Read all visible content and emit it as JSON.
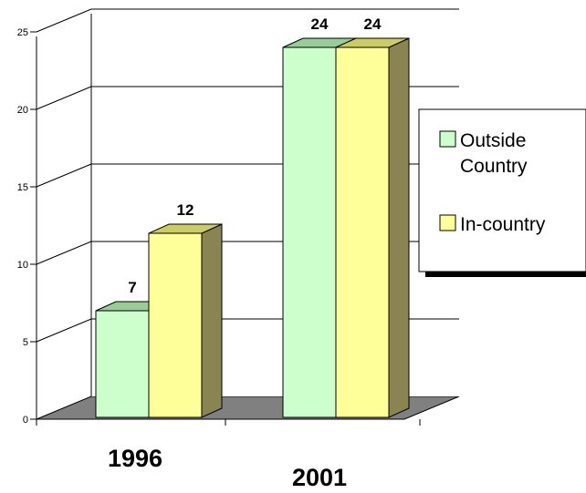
{
  "chart_data": {
    "type": "bar",
    "categories": [
      "1996",
      "2001"
    ],
    "series": [
      {
        "name": "Outside Country",
        "values": [
          7,
          24
        ],
        "color": "#ccffcc"
      },
      {
        "name": "In-country",
        "values": [
          12,
          24
        ],
        "color": "#ffff99"
      }
    ],
    "data_labels": [
      "7",
      "12",
      "24",
      "24"
    ],
    "yticks": [
      "0",
      "5",
      "10",
      "15",
      "20",
      "25"
    ],
    "ylim": [
      0,
      25
    ],
    "grid": true,
    "legend_position": "right",
    "legend": {
      "outside_line1": "Outside",
      "outside_line2": "Country",
      "incountry": "In-country"
    }
  }
}
